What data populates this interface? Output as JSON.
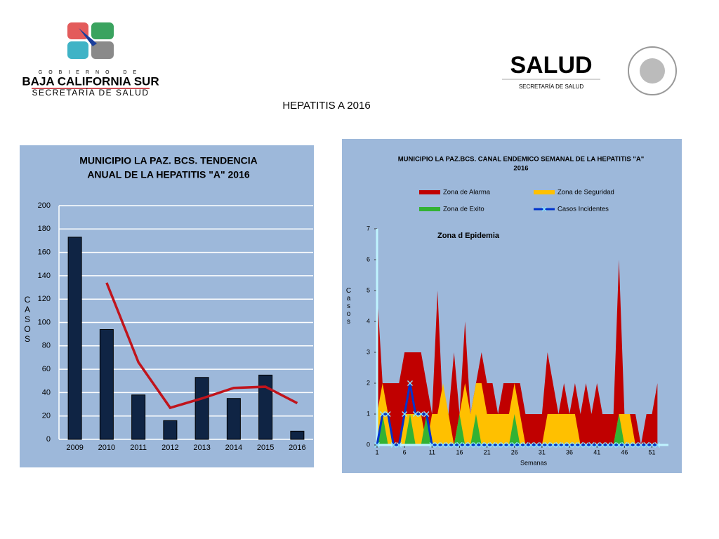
{
  "header": {
    "gov_top": "GOBIERNO DE",
    "gov_state": "BAJA CALIFORNIA SUR",
    "gov_dept": "SECRETARÍA DE SALUD",
    "salud": "SALUD",
    "salud_dept": "SECRETARÍA DE SALUD",
    "page_title": "HEPATITIS A 2016"
  },
  "chart_data": [
    {
      "type": "combo",
      "title": [
        "MUNICIPIO LA PAZ. BCS. TENDENCIA",
        "ANUAL DE LA HEPATITIS  \"A\"  2016"
      ],
      "y_label": "CASOS",
      "categories": [
        "2009",
        "2010",
        "2011",
        "2012",
        "2013",
        "2014",
        "2015",
        "2016"
      ],
      "series": [
        {
          "type": "bar",
          "color": "#0f2444",
          "values": [
            173,
            94,
            38,
            16,
            53,
            35,
            55,
            7
          ]
        },
        {
          "type": "line",
          "color": "#c0141c",
          "values": [
            null,
            134,
            66,
            27,
            35,
            44,
            45,
            31
          ]
        }
      ],
      "ylim": [
        0,
        200
      ],
      "yticks": [
        0,
        20,
        40,
        60,
        80,
        100,
        120,
        140,
        160,
        180,
        200
      ],
      "grid": true
    },
    {
      "type": "area",
      "title": [
        "MUNICIPIO LA PAZ.BCS. CANAL ENDEMICO SEMANAL DE LA HEPATITIS \"A\"",
        "2016"
      ],
      "annotation": "Zona d Epidemia",
      "y_label": "Casos",
      "x_label": "Semanas",
      "x": [
        1,
        2,
        3,
        4,
        5,
        6,
        7,
        8,
        9,
        10,
        11,
        12,
        13,
        14,
        15,
        16,
        17,
        18,
        19,
        20,
        21,
        22,
        23,
        24,
        25,
        26,
        27,
        28,
        29,
        30,
        31,
        32,
        33,
        34,
        35,
        36,
        37,
        38,
        39,
        40,
        41,
        42,
        43,
        44,
        45,
        46,
        47,
        48,
        49,
        50,
        51,
        52
      ],
      "series": [
        {
          "name": "Zona de Alarma",
          "type": "area",
          "color": "#c00000",
          "values": [
            5,
            2,
            2,
            2,
            2,
            3,
            3,
            3,
            3,
            2,
            1,
            5,
            1,
            1,
            3,
            1,
            4,
            1,
            2,
            3,
            2,
            2,
            1,
            2,
            2,
            2,
            2,
            1,
            1,
            1,
            1,
            3,
            2,
            1,
            2,
            1,
            2,
            1,
            2,
            1,
            2,
            1,
            1,
            1,
            6,
            1,
            1,
            1,
            0,
            1,
            1,
            2
          ]
        },
        {
          "name": "Zona de Seguridad",
          "type": "area",
          "color": "#ffc000",
          "values": [
            1,
            2,
            1,
            0,
            0,
            1,
            1,
            1,
            1,
            0,
            1,
            1,
            2,
            1,
            0,
            1,
            2,
            1,
            2,
            2,
            1,
            1,
            1,
            1,
            1,
            2,
            1,
            0,
            0,
            0,
            0,
            1,
            1,
            1,
            1,
            1,
            1,
            0,
            0,
            0,
            0,
            0,
            0,
            0,
            1,
            1,
            1,
            0,
            0,
            0,
            0,
            0
          ]
        },
        {
          "name": "Zona de Exito",
          "type": "area",
          "color": "#33b233",
          "values": [
            0,
            1,
            0,
            0,
            0,
            0,
            1,
            0,
            0,
            1,
            0,
            0,
            0,
            0,
            0,
            1,
            0,
            0,
            1,
            0,
            0,
            0,
            0,
            0,
            0,
            1,
            0,
            0,
            0,
            0,
            0,
            0,
            0,
            0,
            0,
            0,
            0,
            0,
            0,
            0,
            0,
            0,
            0,
            0,
            1,
            0,
            0,
            0,
            0,
            0,
            0,
            0
          ]
        },
        {
          "name": "Casos Incidentes",
          "type": "line",
          "color": "#0033cc",
          "values": [
            0,
            1,
            1,
            0,
            0,
            1,
            2,
            1,
            1,
            1,
            0,
            0,
            0,
            0,
            0,
            0,
            0,
            0,
            0,
            0,
            0,
            0,
            0,
            0,
            0,
            0,
            0,
            0,
            0,
            0,
            0,
            0,
            0,
            0,
            0,
            0,
            0,
            0,
            0,
            0,
            0,
            0,
            0,
            0,
            0,
            0,
            0,
            0,
            0,
            0,
            0,
            0
          ]
        }
      ],
      "xlim": [
        1,
        54
      ],
      "xticks": [
        1,
        6,
        11,
        16,
        21,
        26,
        31,
        36,
        41,
        46,
        51
      ],
      "ylim": [
        0,
        7
      ],
      "yticks": [
        0,
        1,
        2,
        3,
        4,
        5,
        6,
        7
      ],
      "grid": false,
      "legend": "top"
    }
  ]
}
